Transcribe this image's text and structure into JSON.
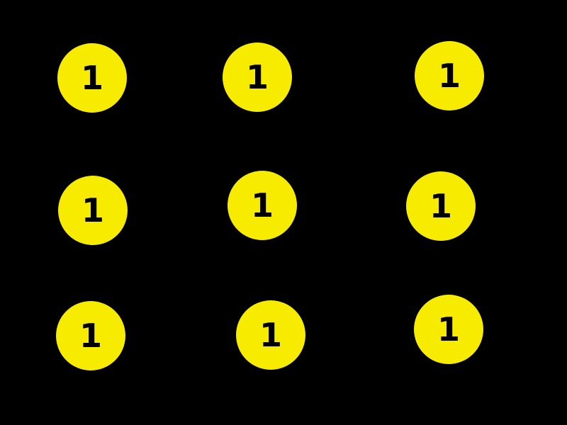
{
  "colors": {
    "background": "#000000",
    "token_fill": "#f7eb00",
    "token_text": "#000000"
  },
  "tokens": [
    {
      "label": "1"
    },
    {
      "label": "1"
    },
    {
      "label": "1"
    },
    {
      "label": "1"
    },
    {
      "label": "1"
    },
    {
      "label": "1"
    },
    {
      "label": "1"
    },
    {
      "label": "1"
    },
    {
      "label": "1"
    }
  ]
}
